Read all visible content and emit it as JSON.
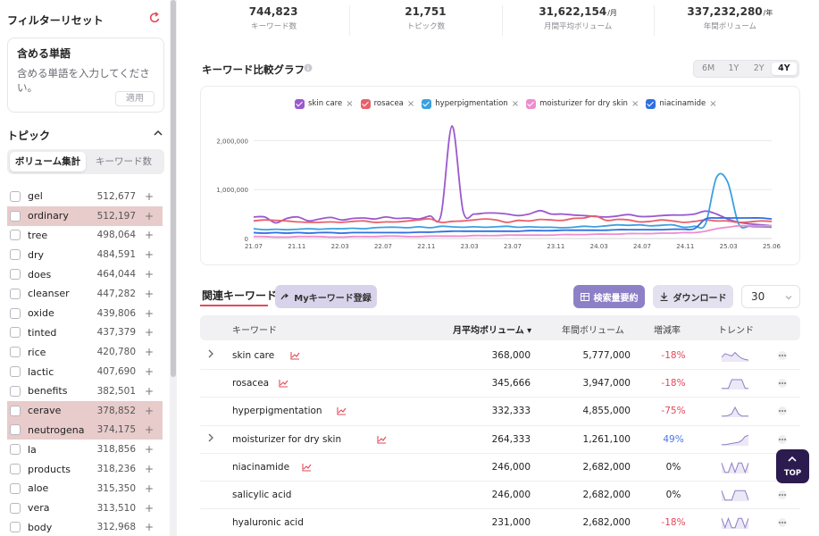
{
  "sidebar": {
    "title": "フィルターリセット",
    "include_card": {
      "heading": "含める単語",
      "placeholder": "含める単語を入力してください。",
      "apply_label": "適用"
    },
    "topic_header": "トピック",
    "segment": {
      "volume": "ボリューム集計",
      "keywords": "キーワード数"
    },
    "topics": [
      {
        "name": "gel",
        "value": "512,677",
        "highlight": false
      },
      {
        "name": "ordinary",
        "value": "512,197",
        "highlight": true
      },
      {
        "name": "tree",
        "value": "498,064",
        "highlight": false
      },
      {
        "name": "dry",
        "value": "484,591",
        "highlight": false
      },
      {
        "name": "does",
        "value": "464,044",
        "highlight": false
      },
      {
        "name": "cleanser",
        "value": "447,282",
        "highlight": false
      },
      {
        "name": "oxide",
        "value": "439,806",
        "highlight": false
      },
      {
        "name": "tinted",
        "value": "437,379",
        "highlight": false
      },
      {
        "name": "rice",
        "value": "420,780",
        "highlight": false
      },
      {
        "name": "lactic",
        "value": "407,690",
        "highlight": false
      },
      {
        "name": "benefits",
        "value": "382,501",
        "highlight": false
      },
      {
        "name": "cerave",
        "value": "378,852",
        "highlight": true
      },
      {
        "name": "neutrogena",
        "value": "374,175",
        "highlight": true
      },
      {
        "name": "la",
        "value": "318,856",
        "highlight": false
      },
      {
        "name": "products",
        "value": "318,236",
        "highlight": false
      },
      {
        "name": "aloe",
        "value": "315,350",
        "highlight": false
      },
      {
        "name": "vera",
        "value": "313,510",
        "highlight": false
      },
      {
        "name": "body",
        "value": "312,968",
        "highlight": false
      }
    ],
    "plus": "+"
  },
  "stats": [
    {
      "value": "744,823",
      "unit": "",
      "label": "キーワード数"
    },
    {
      "value": "21,751",
      "unit": "",
      "label": "トピック数"
    },
    {
      "value": "31,622,154",
      "unit": "/月",
      "label": "月間平均ボリューム"
    },
    {
      "value": "337,232,280",
      "unit": "/年",
      "label": "年間ボリューム"
    }
  ],
  "chart_section": {
    "title": "キーワード比較グラフ",
    "ranges": [
      "6M",
      "1Y",
      "2Y",
      "4Y"
    ],
    "active_range": "4Y"
  },
  "chart_data": {
    "type": "line",
    "x_ticks": [
      "21.07",
      "21.11",
      "22.03",
      "22.07",
      "22.11",
      "23.03",
      "23.07",
      "23.11",
      "24.03",
      "24.07",
      "24.11",
      "25.03",
      "25.06"
    ],
    "y_ticks": [
      "0",
      "1,000,000",
      "2,000,000"
    ],
    "ylim": [
      0,
      2300000
    ],
    "n_points": 48,
    "series": [
      {
        "name": "skin care",
        "color": "#9b59d0",
        "values": [
          440000,
          440000,
          320000,
          410000,
          440000,
          360000,
          400000,
          430000,
          380000,
          410000,
          420000,
          400000,
          440000,
          410000,
          420000,
          400000,
          460000,
          480000,
          2300000,
          560000,
          500000,
          520000,
          520000,
          500000,
          470000,
          500000,
          570000,
          500000,
          500000,
          480000,
          470000,
          450000,
          440000,
          460000,
          490000,
          450000,
          450000,
          470000,
          480000,
          480000,
          500000,
          560000,
          500000,
          400000,
          330000,
          300000,
          280000,
          260000
        ]
      },
      {
        "name": "rosacea",
        "color": "#e8606a",
        "values": [
          360000,
          380000,
          370000,
          360000,
          340000,
          330000,
          330000,
          340000,
          330000,
          350000,
          360000,
          330000,
          340000,
          340000,
          360000,
          380000,
          400000,
          330000,
          350000,
          360000,
          380000,
          400000,
          380000,
          330000,
          370000,
          360000,
          390000,
          380000,
          370000,
          410000,
          420000,
          460000,
          370000,
          390000,
          380000,
          340000,
          350000,
          380000,
          360000,
          330000,
          350000,
          380000,
          360000,
          360000,
          330000,
          340000,
          360000,
          350000
        ]
      },
      {
        "name": "hyperpigmentation",
        "color": "#3aa0e0",
        "values": [
          200000,
          180000,
          190000,
          180000,
          190000,
          200000,
          190000,
          200000,
          200000,
          210000,
          200000,
          220000,
          230000,
          230000,
          220000,
          240000,
          220000,
          250000,
          240000,
          230000,
          240000,
          230000,
          240000,
          250000,
          230000,
          240000,
          230000,
          230000,
          220000,
          230000,
          250000,
          240000,
          260000,
          280000,
          270000,
          280000,
          260000,
          270000,
          280000,
          230000,
          250000,
          300000,
          1250000,
          1160000,
          300000,
          250000,
          240000,
          230000
        ]
      },
      {
        "name": "moisturizer for dry skin",
        "color": "#ee8ccf",
        "values": [
          40000,
          40000,
          30000,
          30000,
          40000,
          40000,
          40000,
          30000,
          30000,
          40000,
          40000,
          40000,
          50000,
          50000,
          40000,
          40000,
          50000,
          50000,
          50000,
          50000,
          60000,
          60000,
          60000,
          70000,
          70000,
          70000,
          70000,
          70000,
          80000,
          80000,
          80000,
          90000,
          90000,
          90000,
          100000,
          100000,
          100000,
          110000,
          110000,
          120000,
          120000,
          150000,
          200000,
          230000,
          260000,
          260000,
          260000,
          260000
        ]
      },
      {
        "name": "niacinamide",
        "color": "#2f6fe0",
        "values": [
          120000,
          110000,
          120000,
          110000,
          120000,
          110000,
          120000,
          120000,
          110000,
          120000,
          120000,
          120000,
          120000,
          120000,
          120000,
          130000,
          130000,
          140000,
          150000,
          150000,
          150000,
          150000,
          150000,
          150000,
          150000,
          160000,
          160000,
          160000,
          170000,
          170000,
          170000,
          170000,
          170000,
          180000,
          180000,
          180000,
          180000,
          180000,
          190000,
          190000,
          200000,
          400000,
          420000,
          420000,
          420000,
          420000,
          420000,
          400000
        ]
      }
    ]
  },
  "related": {
    "tab_label": "関連キーワード",
    "my_keyword_button": "Myキーワード登録",
    "summary_button": "検索量要約",
    "download_button": "ダウンロード",
    "page_size": "30",
    "columns": {
      "keyword": "キーワード",
      "monthly": "月平均ボリューム ▾",
      "yearly": "年間ボリューム",
      "growth": "増減率",
      "trend": "トレンド"
    },
    "rows": [
      {
        "keyword": "skin care",
        "monthly": "368,000",
        "yearly": "5,777,000",
        "growth": "-18%",
        "growth_kind": "neg",
        "expandable": true,
        "has_icon": true,
        "trend": [
          0.4,
          0.7,
          0.6,
          0.5,
          0.8,
          0.5,
          0.3,
          0.2,
          0.15
        ]
      },
      {
        "keyword": "rosacea",
        "monthly": "345,666",
        "yearly": "3,947,000",
        "growth": "-18%",
        "growth_kind": "neg",
        "expandable": false,
        "has_icon": true,
        "trend": [
          0.1,
          0.1,
          0.1,
          0.85,
          0.85,
          0.85,
          0.85,
          0.1,
          0.1
        ]
      },
      {
        "keyword": "hyperpigmentation",
        "monthly": "332,333",
        "yearly": "4,855,000",
        "growth": "-75%",
        "growth_kind": "neg",
        "expandable": false,
        "has_icon": true,
        "trend": [
          0.1,
          0.1,
          0.15,
          0.3,
          0.85,
          0.3,
          0.1,
          0.1,
          0.1
        ]
      },
      {
        "keyword": "moisturizer for dry skin",
        "monthly": "264,333",
        "yearly": "1,261,100",
        "growth": "49%",
        "growth_kind": "pos",
        "expandable": true,
        "has_icon": true,
        "trend": [
          0.1,
          0.1,
          0.15,
          0.2,
          0.25,
          0.3,
          0.45,
          0.8,
          0.9
        ]
      },
      {
        "keyword": "niacinamide",
        "monthly": "246,000",
        "yearly": "2,682,000",
        "growth": "0%",
        "growth_kind": "zero",
        "expandable": false,
        "has_icon": true,
        "trend": [
          0.9,
          0.1,
          0.1,
          0.9,
          0.1,
          0.9,
          0.9,
          0.1,
          0.9
        ]
      },
      {
        "keyword": "salicylic acid",
        "monthly": "246,000",
        "yearly": "2,682,000",
        "growth": "0%",
        "growth_kind": "zero",
        "expandable": false,
        "has_icon": false,
        "trend": [
          0.9,
          0.1,
          0.1,
          0.1,
          0.9,
          0.9,
          0.9,
          0.9,
          0.1
        ]
      },
      {
        "keyword": "hyaluronic acid",
        "monthly": "231,000",
        "yearly": "2,682,000",
        "growth": "-18%",
        "growth_kind": "neg",
        "expandable": false,
        "has_icon": false,
        "trend": [
          0.9,
          0.1,
          0.9,
          0.1,
          0.1,
          0.9,
          0.9,
          0.1,
          0.9
        ]
      }
    ]
  },
  "top_button": "TOP",
  "colors": {
    "accent": "#8e80c6",
    "highlight_row": "#e8cbcb",
    "negative": "#e0485a",
    "positive": "#4a78e8",
    "top_button": "#2c1b4e"
  }
}
